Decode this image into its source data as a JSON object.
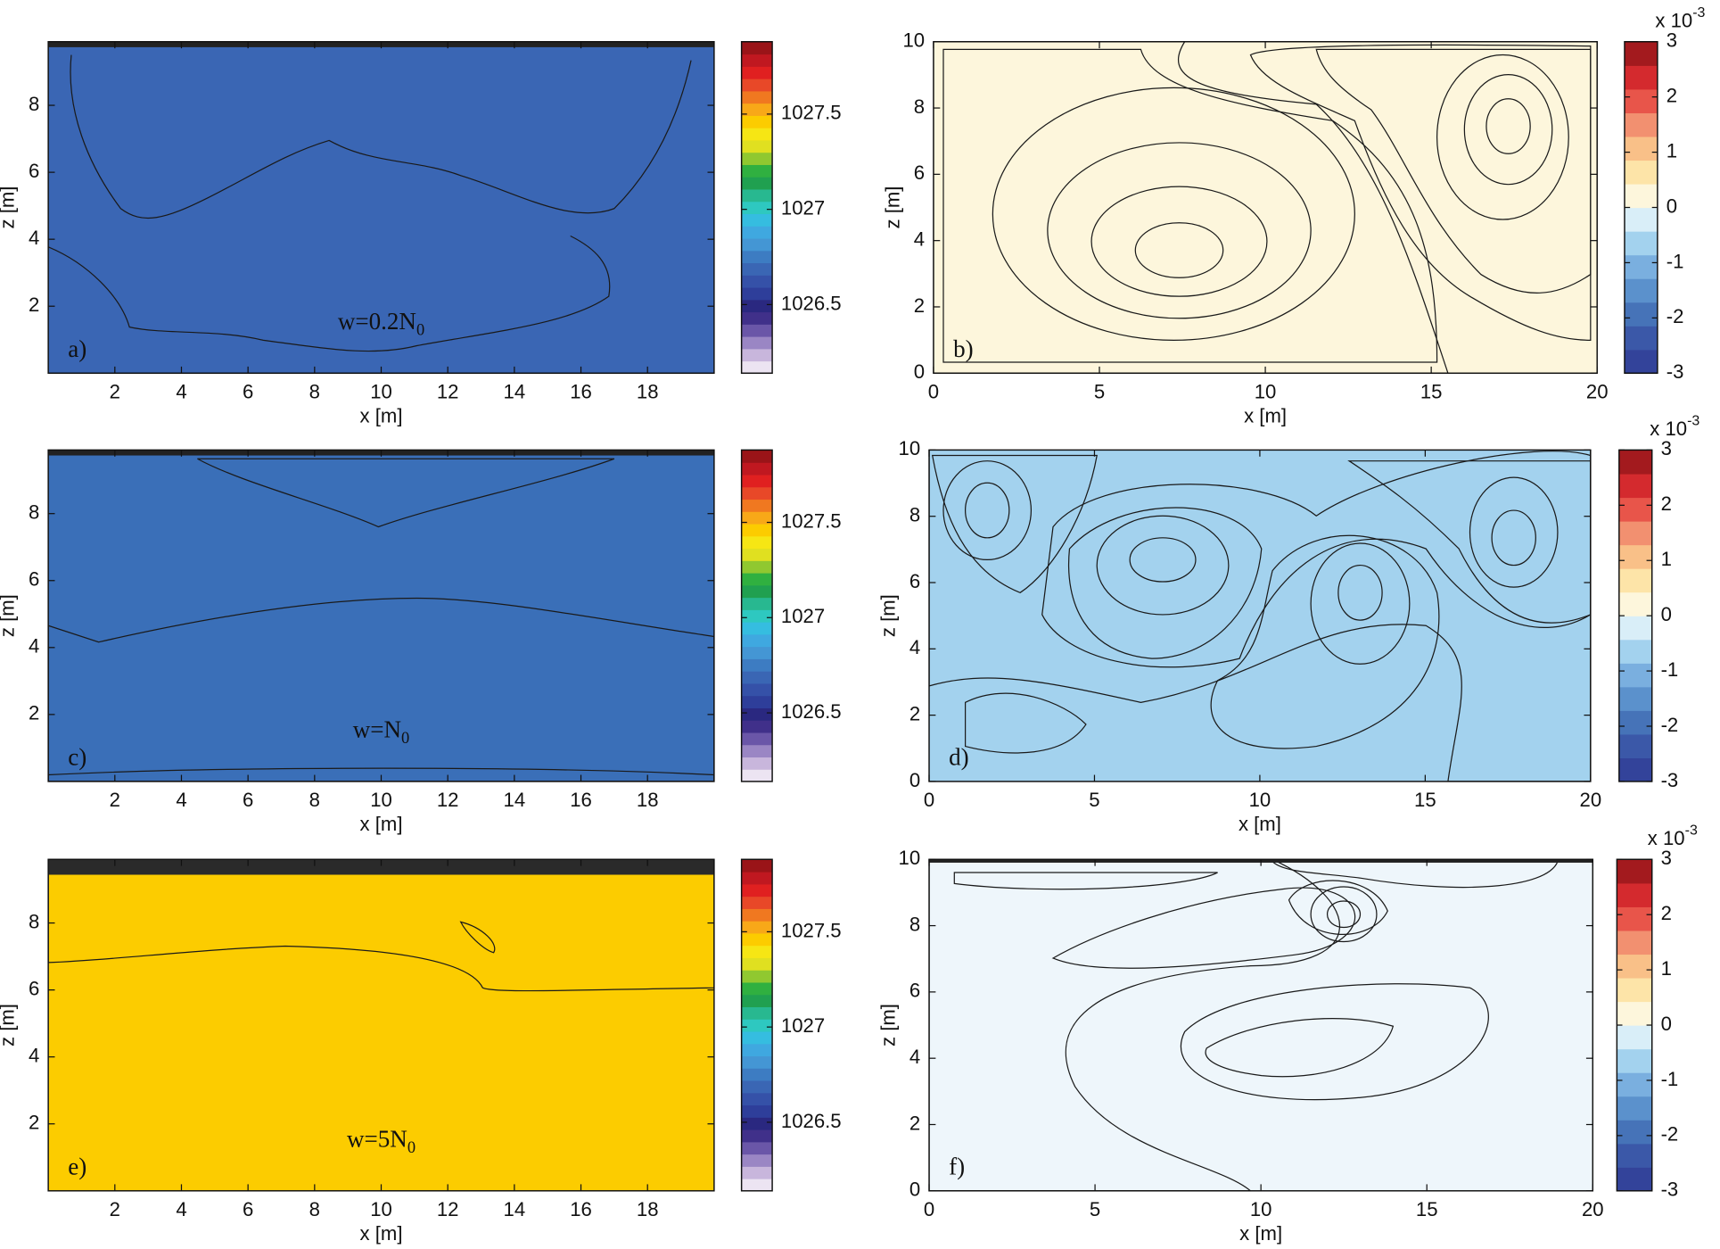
{
  "chart_data": [
    {
      "type": "contour",
      "panel_label": "a)",
      "annotation": "w=0.2N",
      "annotation_sub": "0",
      "xlabel": "x [m]",
      "ylabel": "z [m]",
      "xlim": [
        0,
        20
      ],
      "ylim": [
        0,
        9.9
      ],
      "xticks": [
        2,
        4,
        6,
        8,
        10,
        12,
        14,
        16,
        18
      ],
      "yticks": [
        2,
        4,
        6,
        8
      ],
      "colorbar": {
        "lim": [
          1026.14,
          1027.88
        ],
        "ticks": [
          1026.5,
          1027,
          1027.5
        ],
        "colormap": [
          "#ece4f2",
          "#c8b6dc",
          "#9a86c4",
          "#6a56a8",
          "#40308a",
          "#2a2880",
          "#2e3e9a",
          "#3551a8",
          "#3a66b4",
          "#3d7cc2",
          "#4496d4",
          "#3fa8e0",
          "#35bde0",
          "#2ec8c0",
          "#28b890",
          "#20a050",
          "#30b040",
          "#90c830",
          "#e0e020",
          "#f6e614",
          "#fccc00",
          "#f8a818",
          "#f07820",
          "#e84828",
          "#e02020",
          "#c01820",
          "#9a1418"
        ]
      }
    },
    {
      "type": "contour",
      "panel_label": "b)",
      "xlabel": "x [m]",
      "ylabel": "z [m]",
      "xlim": [
        0,
        20
      ],
      "ylim": [
        0,
        10
      ],
      "xticks": [
        0,
        5,
        10,
        15,
        20
      ],
      "yticks": [
        0,
        2,
        4,
        6,
        8,
        10
      ],
      "colorbar": {
        "lim": [
          -3,
          3
        ],
        "ticks": [
          -3,
          -2,
          -1,
          0,
          1,
          2,
          3
        ],
        "scale_label": "x 10",
        "scale_exp": "-3",
        "colormap": [
          "#33439a",
          "#3b58a8",
          "#4673b8",
          "#5b91cc",
          "#7aafdf",
          "#a3d2ee",
          "#d9eef8",
          "#fdf6dc",
          "#fde4a8",
          "#f9c088",
          "#f29070",
          "#e8554a",
          "#d42a2e",
          "#a31a1e"
        ]
      }
    },
    {
      "type": "contour",
      "panel_label": "c)",
      "annotation": "w=N",
      "annotation_sub": "0",
      "xlabel": "x [m]",
      "ylabel": "z [m]",
      "xlim": [
        0,
        20
      ],
      "ylim": [
        0,
        9.9
      ],
      "xticks": [
        2,
        4,
        6,
        8,
        10,
        12,
        14,
        16,
        18
      ],
      "yticks": [
        2,
        4,
        6,
        8
      ],
      "colorbar": {
        "lim": [
          1026.14,
          1027.88
        ],
        "ticks": [
          1026.5,
          1027,
          1027.5
        ],
        "colormap": [
          "#ece4f2",
          "#c8b6dc",
          "#9a86c4",
          "#6a56a8",
          "#40308a",
          "#2a2880",
          "#2e3e9a",
          "#3551a8",
          "#3a66b4",
          "#3d7cc2",
          "#4496d4",
          "#3fa8e0",
          "#35bde0",
          "#2ec8c0",
          "#28b890",
          "#20a050",
          "#30b040",
          "#90c830",
          "#e0e020",
          "#f6e614",
          "#fccc00",
          "#f8a818",
          "#f07820",
          "#e84828",
          "#e02020",
          "#c01820",
          "#9a1418"
        ]
      }
    },
    {
      "type": "contour",
      "panel_label": "d)",
      "xlabel": "x [m]",
      "ylabel": "z [m]",
      "xlim": [
        0,
        20
      ],
      "ylim": [
        0,
        10
      ],
      "xticks": [
        0,
        5,
        10,
        15,
        20
      ],
      "yticks": [
        0,
        2,
        4,
        6,
        8,
        10
      ],
      "colorbar": {
        "lim": [
          -3,
          3
        ],
        "ticks": [
          -3,
          -2,
          -1,
          0,
          1,
          2,
          3
        ],
        "scale_label": "x 10",
        "scale_exp": "-3",
        "colormap": [
          "#33439a",
          "#3b58a8",
          "#4673b8",
          "#5b91cc",
          "#7aafdf",
          "#a3d2ee",
          "#d9eef8",
          "#fdf6dc",
          "#fde4a8",
          "#f9c088",
          "#f29070",
          "#e8554a",
          "#d42a2e",
          "#a31a1e"
        ]
      }
    },
    {
      "type": "contour",
      "panel_label": "e)",
      "annotation": "w=5N",
      "annotation_sub": "0",
      "xlabel": "x [m]",
      "ylabel": "z [m]",
      "xlim": [
        0,
        20
      ],
      "ylim": [
        0,
        9.9
      ],
      "xticks": [
        2,
        4,
        6,
        8,
        10,
        12,
        14,
        16,
        18
      ],
      "yticks": [
        2,
        4,
        6,
        8
      ],
      "colorbar": {
        "lim": [
          1026.14,
          1027.88
        ],
        "ticks": [
          1026.5,
          1027,
          1027.5
        ],
        "colormap": [
          "#ece4f2",
          "#c8b6dc",
          "#9a86c4",
          "#6a56a8",
          "#40308a",
          "#2a2880",
          "#2e3e9a",
          "#3551a8",
          "#3a66b4",
          "#3d7cc2",
          "#4496d4",
          "#3fa8e0",
          "#35bde0",
          "#2ec8c0",
          "#28b890",
          "#20a050",
          "#30b040",
          "#90c830",
          "#e0e020",
          "#f6e614",
          "#fccc00",
          "#f8a818",
          "#f07820",
          "#e84828",
          "#e02020",
          "#c01820",
          "#9a1418"
        ]
      }
    },
    {
      "type": "contour",
      "panel_label": "f)",
      "xlabel": "x [m]",
      "ylabel": "z [m]",
      "xlim": [
        0,
        20
      ],
      "ylim": [
        0,
        10
      ],
      "xticks": [
        0,
        5,
        10,
        15,
        20
      ],
      "yticks": [
        0,
        2,
        4,
        6,
        8,
        10
      ],
      "colorbar": {
        "lim": [
          -3,
          3
        ],
        "ticks": [
          -3,
          -2,
          -1,
          0,
          1,
          2,
          3
        ],
        "scale_label": "x 10",
        "scale_exp": "-3",
        "colormap": [
          "#33439a",
          "#3b58a8",
          "#4673b8",
          "#5b91cc",
          "#7aafdf",
          "#a3d2ee",
          "#d9eef8",
          "#fdf6dc",
          "#fde4a8",
          "#f9c088",
          "#f29070",
          "#e8554a",
          "#d42a2e",
          "#a31a1e"
        ]
      }
    }
  ]
}
